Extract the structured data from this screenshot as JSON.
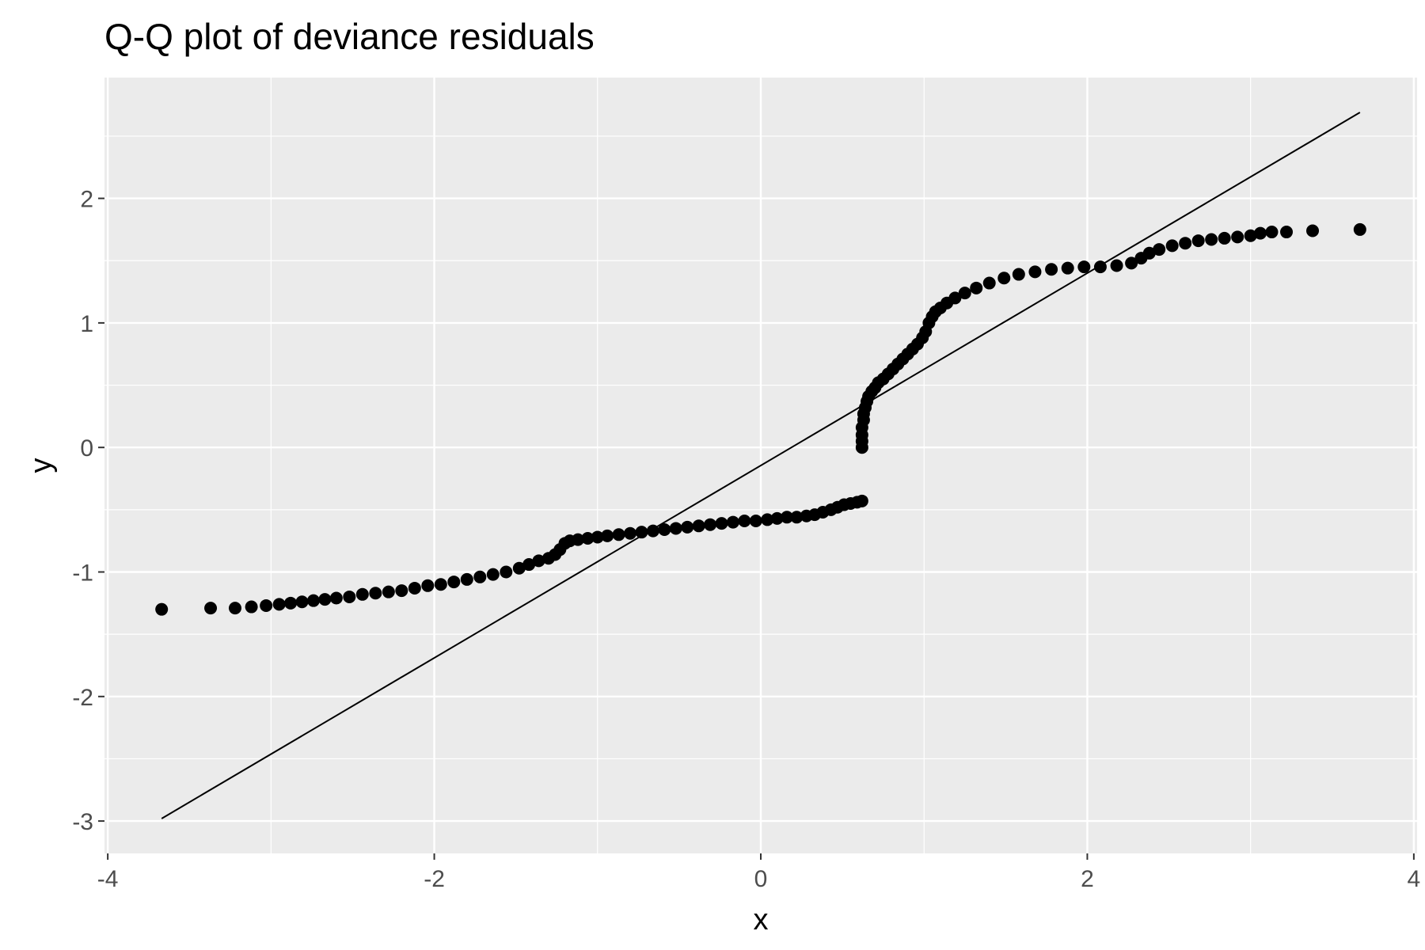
{
  "chart_data": {
    "type": "scatter",
    "title": "Q-Q plot of deviance residuals",
    "xlabel": "x",
    "ylabel": "y",
    "xlim": [
      -4.02,
      4.02
    ],
    "ylim": [
      -3.26,
      2.97
    ],
    "x_ticks": [
      -4,
      -2,
      0,
      2,
      4
    ],
    "x_tick_labels": [
      "-4",
      "-2",
      "0",
      "2",
      "4"
    ],
    "y_ticks": [
      -3,
      -2,
      -1,
      0,
      1,
      2
    ],
    "y_tick_labels": [
      "-3",
      "-2",
      "-1",
      "0",
      "1",
      "2"
    ],
    "grid": true,
    "legend": "none",
    "colors": {
      "panel": "#ebebeb",
      "grid": "#ffffff",
      "points": "#000000",
      "line": "#000000",
      "tick_text": "#4d4d4d"
    },
    "reference_line": {
      "x": [
        -3.67,
        3.67
      ],
      "y": [
        -2.98,
        2.69
      ]
    },
    "series": [
      {
        "x": [
          -3.67,
          -3.37,
          -3.22,
          -3.12,
          -3.03,
          -2.95,
          -2.88,
          -2.81,
          -2.74,
          -2.67,
          -2.6,
          -2.52,
          -2.44,
          -2.36,
          -2.28,
          -2.2,
          -2.12,
          -2.04,
          -1.96,
          -1.88,
          -1.8,
          -1.72,
          -1.64,
          -1.56,
          -1.48,
          -1.42,
          -1.36,
          -1.3,
          -1.26,
          -1.23,
          -1.2,
          -1.17,
          -1.12,
          -1.06,
          -1.0,
          -0.94,
          -0.87,
          -0.8,
          -0.73,
          -0.66,
          -0.59,
          -0.52,
          -0.45,
          -0.38,
          -0.31,
          -0.24,
          -0.17,
          -0.1,
          -0.03,
          0.04,
          0.1,
          0.16,
          0.22,
          0.28,
          0.33,
          0.38,
          0.43,
          0.47,
          0.51,
          0.55,
          0.59,
          0.62
        ],
        "y": [
          -1.3,
          -1.29,
          -1.29,
          -1.28,
          -1.27,
          -1.26,
          -1.25,
          -1.24,
          -1.23,
          -1.22,
          -1.21,
          -1.2,
          -1.18,
          -1.17,
          -1.16,
          -1.15,
          -1.13,
          -1.11,
          -1.1,
          -1.08,
          -1.06,
          -1.04,
          -1.02,
          -1.0,
          -0.97,
          -0.94,
          -0.91,
          -0.89,
          -0.86,
          -0.82,
          -0.77,
          -0.75,
          -0.74,
          -0.73,
          -0.72,
          -0.71,
          -0.7,
          -0.69,
          -0.68,
          -0.67,
          -0.66,
          -0.65,
          -0.64,
          -0.63,
          -0.62,
          -0.61,
          -0.6,
          -0.59,
          -0.59,
          -0.58,
          -0.57,
          -0.56,
          -0.56,
          -0.55,
          -0.54,
          -0.52,
          -0.5,
          -0.48,
          -0.46,
          -0.45,
          -0.44,
          -0.43
        ]
      },
      {
        "x": [
          0.62,
          0.62,
          0.62,
          0.62,
          0.63,
          0.63,
          0.64,
          0.65,
          0.66,
          0.68,
          0.7,
          0.72,
          0.75,
          0.78,
          0.81,
          0.84,
          0.87,
          0.9,
          0.93,
          0.96,
          0.99,
          1.01,
          1.03,
          1.05,
          1.07,
          1.1,
          1.14,
          1.19,
          1.25,
          1.32,
          1.4,
          1.49,
          1.58,
          1.68,
          1.78,
          1.88,
          1.98,
          2.08,
          2.18,
          2.27,
          2.33,
          2.38,
          2.44,
          2.52,
          2.6,
          2.68,
          2.76,
          2.84,
          2.92,
          3.0,
          3.06,
          3.13,
          3.22,
          3.38,
          3.67
        ],
        "y": [
          0.0,
          0.05,
          0.1,
          0.16,
          0.22,
          0.27,
          0.32,
          0.37,
          0.41,
          0.45,
          0.48,
          0.52,
          0.55,
          0.59,
          0.63,
          0.67,
          0.71,
          0.75,
          0.79,
          0.83,
          0.88,
          0.93,
          1.0,
          1.05,
          1.09,
          1.12,
          1.16,
          1.2,
          1.24,
          1.28,
          1.32,
          1.36,
          1.39,
          1.41,
          1.43,
          1.44,
          1.45,
          1.45,
          1.46,
          1.48,
          1.52,
          1.56,
          1.59,
          1.62,
          1.64,
          1.66,
          1.67,
          1.68,
          1.69,
          1.7,
          1.72,
          1.73,
          1.73,
          1.74,
          1.75
        ]
      }
    ]
  }
}
